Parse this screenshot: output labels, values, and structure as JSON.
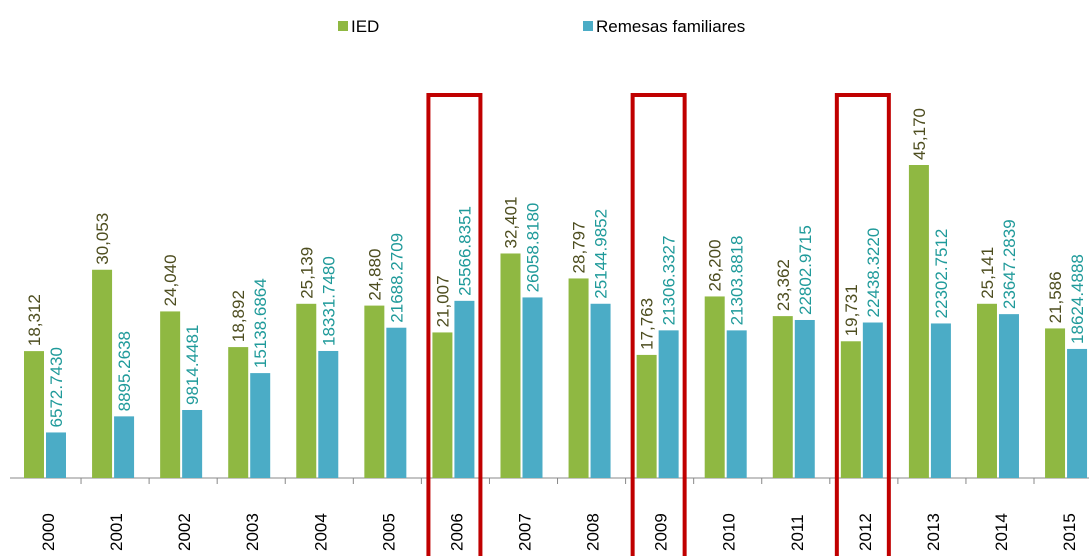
{
  "chart_data": {
    "type": "bar",
    "categories": [
      "2000",
      "2001",
      "2002",
      "2003",
      "2004",
      "2005",
      "2006",
      "2007",
      "2008",
      "2009",
      "2010",
      "2011",
      "2012",
      "2013",
      "2014",
      "2015"
    ],
    "series": [
      {
        "name": "IED",
        "color": "#8fb842",
        "label_color": "#4d4d1f",
        "values": [
          18312,
          30053,
          24040,
          18892,
          25139,
          24880,
          21007,
          32401,
          28797,
          17763,
          26200,
          23362,
          19731,
          45170,
          25141,
          21586
        ],
        "value_labels": [
          "18,312",
          "30,053",
          "24,040",
          "18,892",
          "25,139",
          "24,880",
          "21,007",
          "32,401",
          "28,797",
          "17,763",
          "26,200",
          "23,362",
          "19,731",
          "45,170",
          "25,141",
          "21,586"
        ]
      },
      {
        "name": "Remesas familiares",
        "color": "#4bacc6",
        "label_color": "#1f9a9a",
        "values": [
          6572.743,
          8895.2638,
          9814.4481,
          15138.6864,
          18331.748,
          21688.2709,
          25566.8351,
          26058.818,
          25144.9852,
          21306.3327,
          21303.8818,
          22802.9715,
          22438.322,
          22302.7512,
          23647.2839,
          18624.4888
        ],
        "value_labels": [
          "6572.7430",
          "8895.2638",
          "9814.4481",
          "15138.6864",
          "18331.7480",
          "21688.2709",
          "25566.8351",
          "26058.8180",
          "25144.9852",
          "21306.3327",
          "21303.8818",
          "22802.9715",
          "22438.3220",
          "22302.7512",
          "23647.2839",
          "18624.4888"
        ]
      }
    ]
  }
}
